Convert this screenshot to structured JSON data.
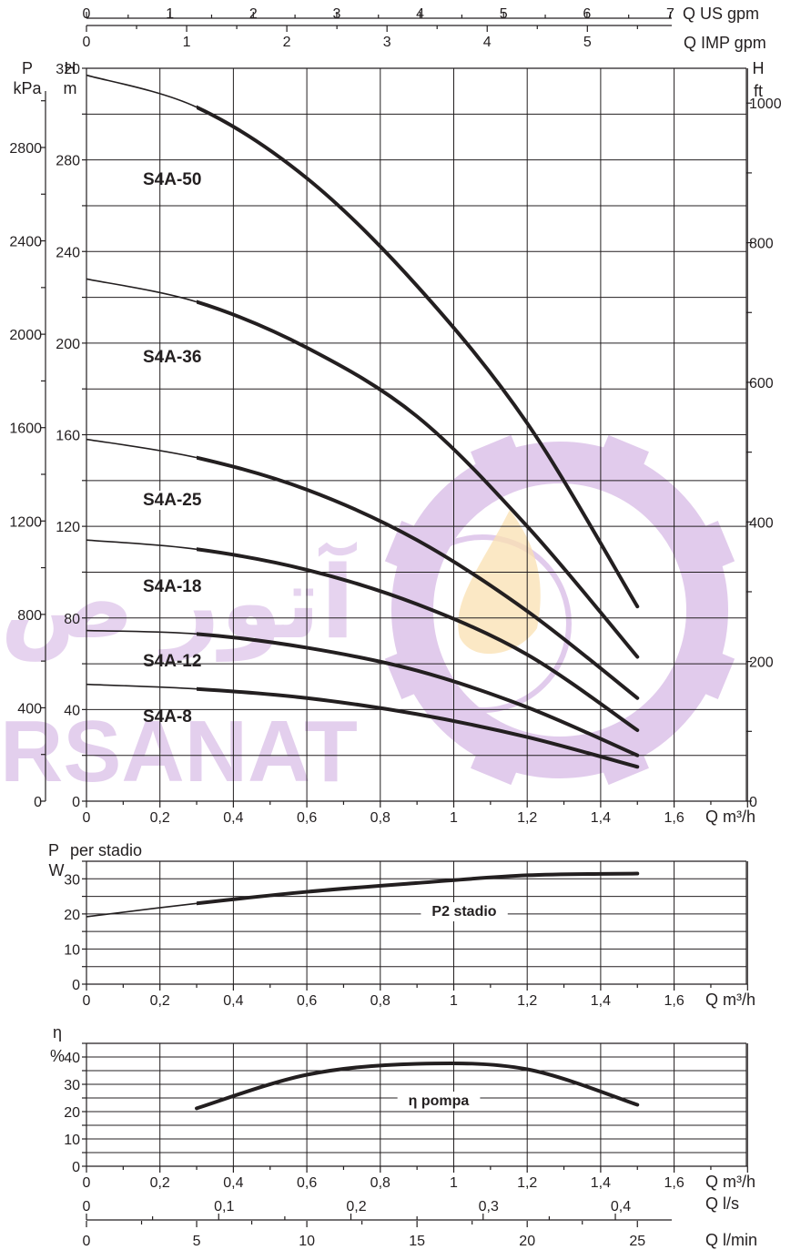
{
  "colors": {
    "ink": "#231f20",
    "paper": "#ffffff",
    "watermark": "#c9a0dc",
    "watermark_flame": "#f7c873"
  },
  "watermark": {
    "text_latin": "RSANAT",
    "text_persian": "آتور ص"
  },
  "chart_data": [
    {
      "type": "line",
      "title": "",
      "x_unit": "Q m³/h",
      "y_unit_left": "H",
      "y_unit_left_sub": "m",
      "pressure_unit": "P",
      "pressure_unit_sub": "kPa",
      "y_unit_right": "H",
      "y_unit_right_sub": "ft",
      "top_axis_us": "Q US gpm",
      "top_axis_imp": "Q IMP gpm",
      "xlim": [
        0,
        1.8
      ],
      "ylim": [
        0,
        320
      ],
      "grid": true,
      "x_ticks": [
        "0",
        "0,2",
        "0,4",
        "0,6",
        "0,8",
        "1",
        "1,2",
        "1,4",
        "1,6"
      ],
      "y_ticks": [
        "0",
        "40",
        "80",
        "120",
        "160",
        "200",
        "240",
        "280",
        "320"
      ],
      "pressure_ticks": [
        "0",
        "400",
        "800",
        "1200",
        "1600",
        "2000",
        "2400",
        "2800"
      ],
      "ft_ticks": [
        "0",
        "200",
        "400",
        "600",
        "800",
        "1000"
      ],
      "us_gpm_ticks": [
        "0",
        "1",
        "2",
        "3",
        "4",
        "5",
        "6",
        "7"
      ],
      "imp_gpm_ticks": [
        "0",
        "1",
        "2",
        "3",
        "4",
        "5"
      ],
      "series": [
        {
          "name": "S4A-50",
          "x": [
            0,
            0.3,
            0.6,
            0.9,
            1.2,
            1.5
          ],
          "y": [
            317,
            303,
            272,
            225,
            165,
            85
          ]
        },
        {
          "name": "S4A-36",
          "x": [
            0,
            0.3,
            0.6,
            0.9,
            1.2,
            1.5
          ],
          "y": [
            228,
            218,
            198,
            168,
            120,
            63
          ]
        },
        {
          "name": "S4A-25",
          "x": [
            0,
            0.3,
            0.6,
            0.9,
            1.2,
            1.5
          ],
          "y": [
            158,
            150,
            136,
            114,
            83,
            45
          ]
        },
        {
          "name": "S4A-18",
          "x": [
            0,
            0.3,
            0.6,
            0.9,
            1.2,
            1.5
          ],
          "y": [
            114,
            110,
            101,
            86,
            64,
            31
          ]
        },
        {
          "name": "S4A-12",
          "x": [
            0,
            0.3,
            0.6,
            0.9,
            1.2,
            1.5
          ],
          "y": [
            74.5,
            73,
            67,
            57,
            41,
            20
          ]
        },
        {
          "name": "S4A-8",
          "x": [
            0,
            0.3,
            0.6,
            0.9,
            1.2,
            1.5
          ],
          "y": [
            51,
            49,
            45,
            38,
            28,
            15
          ]
        }
      ]
    },
    {
      "type": "line",
      "title": "",
      "y_unit": "P",
      "y_unit_suffix": "per stadio",
      "y_unit_sub": "W",
      "x_unit": "Q m³/h",
      "xlim": [
        0,
        1.8
      ],
      "ylim": [
        0,
        35
      ],
      "grid": true,
      "x_ticks": [
        "0",
        "0,2",
        "0,4",
        "0,6",
        "0,8",
        "1",
        "1,2",
        "1,4",
        "1,6"
      ],
      "y_ticks": [
        "0",
        "10",
        "20",
        "30"
      ],
      "series": [
        {
          "name": "P2 stadio",
          "x": [
            0,
            0.3,
            0.6,
            0.9,
            1.2,
            1.5
          ],
          "y": [
            19.2,
            23,
            26.3,
            28.8,
            31,
            31.5
          ]
        }
      ]
    },
    {
      "type": "line",
      "title": "",
      "y_unit": "η",
      "y_unit_sub": "%",
      "x_unit": "Q m³/h",
      "ls_unit": "Q l/s",
      "lmin_unit": "Q l/min",
      "xlim": [
        0,
        1.8
      ],
      "ylim": [
        0,
        45
      ],
      "grid": true,
      "x_ticks": [
        "0",
        "0,2",
        "0,4",
        "0,6",
        "0,8",
        "1",
        "1,2",
        "1,4",
        "1,6"
      ],
      "y_ticks": [
        "0",
        "10",
        "20",
        "30",
        "40"
      ],
      "ls_ticks": [
        "0",
        "0,1",
        "0,2",
        "0,3",
        "0,4"
      ],
      "lmin_ticks": [
        "0",
        "5",
        "10",
        "15",
        "20",
        "25"
      ],
      "series": [
        {
          "name": "η pompa",
          "x": [
            0.3,
            0.6,
            0.9,
            1.2,
            1.5
          ],
          "y": [
            21.2,
            33.5,
            37.5,
            35.5,
            22.5
          ]
        }
      ]
    }
  ]
}
